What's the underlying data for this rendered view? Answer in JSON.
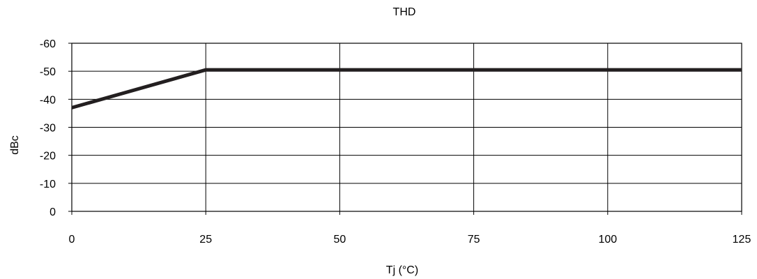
{
  "chart_data": {
    "type": "line",
    "title": "THD",
    "xlabel": "Tj (°C)",
    "ylabel": "dBc",
    "xlim": [
      0,
      125
    ],
    "ylim": [
      0,
      -60
    ],
    "x_ticks": [
      0,
      25,
      50,
      75,
      100,
      125
    ],
    "y_ticks": [
      -60,
      -50,
      -40,
      -30,
      -20,
      -10,
      0
    ],
    "x_tick_labels": [
      "0",
      "25",
      "50",
      "75",
      "100",
      "125"
    ],
    "y_tick_labels": [
      "-60",
      "-50",
      "-40",
      "-30",
      "-20",
      "-10",
      "0"
    ],
    "grid": true,
    "legend": "none",
    "series": [
      {
        "x": [
          0,
          25,
          125
        ],
        "y": [
          -37,
          -50.5,
          -50.5
        ],
        "color": "#231f20"
      }
    ]
  }
}
